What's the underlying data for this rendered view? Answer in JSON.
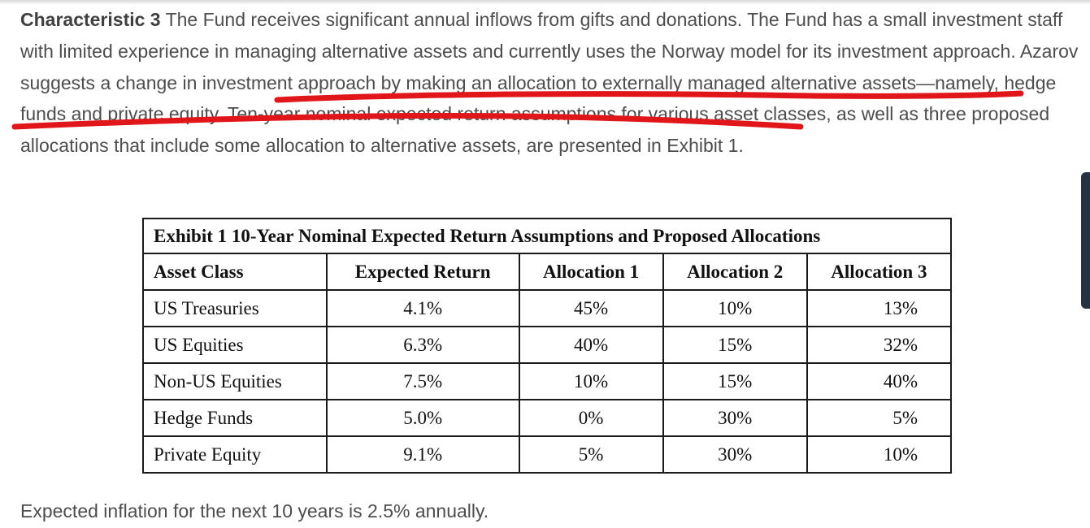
{
  "intro": {
    "lead": "Characteristic 3",
    "sentence_1": " The Fund receives significant annual inflows from gifts and donations. The Fund has a small investment staff with limited experience in managing alternative assets and currently uses the Norway model for its investment approach. ",
    "sentence_2": "Azarov suggests a change in investment approach by making an allocation to externally managed alternative assets—namely, hedge funds and private equity.",
    "sentence_3": " Ten-year nominal expected return assumptions for various asset classes, as well as three proposed allocations that include some allocation to alternative assets, are presented in Exhibit 1."
  },
  "annotation": {
    "color": "#e0161b"
  },
  "exhibit": {
    "title": "Exhibit 1 10-Year Nominal Expected Return Assumptions and Proposed Allocations",
    "headers": [
      "Asset Class",
      "Expected Return",
      "Allocation 1",
      "Allocation 2",
      "Allocation 3"
    ],
    "rows": [
      [
        "US Treasuries",
        "4.1%",
        "45%",
        "10%",
        "13%"
      ],
      [
        "US Equities",
        "6.3%",
        "40%",
        "15%",
        "32%"
      ],
      [
        "Non-US Equities",
        "7.5%",
        "10%",
        "15%",
        "40%"
      ],
      [
        "Hedge Funds",
        "5.0%",
        "0%",
        "30%",
        "5%"
      ],
      [
        "Private Equity",
        "9.1%",
        "5%",
        "30%",
        "10%"
      ]
    ]
  },
  "footnote": "Expected inflation for the next 10 years is 2.5% annually."
}
